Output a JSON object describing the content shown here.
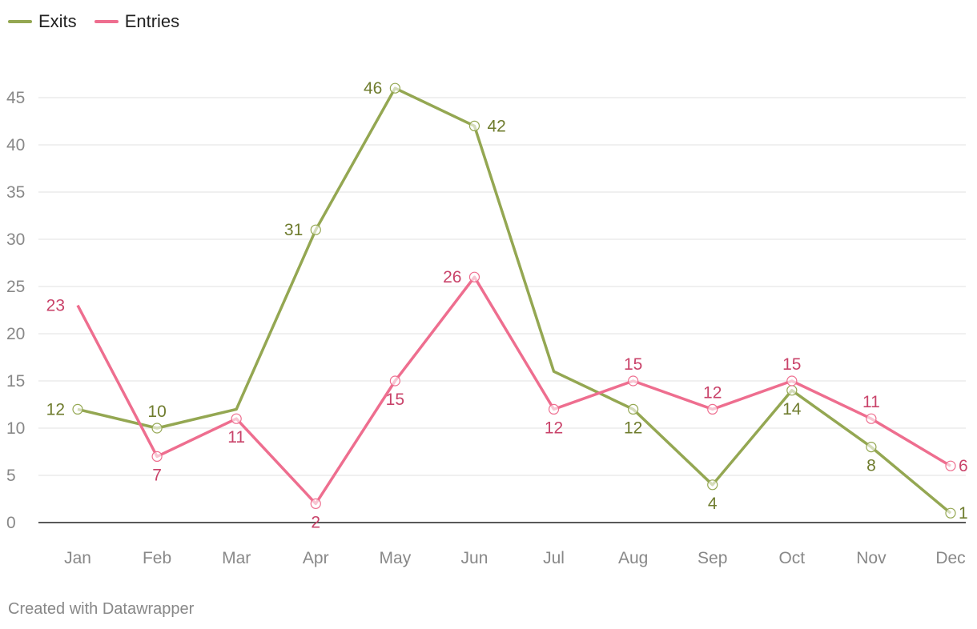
{
  "legend": [
    {
      "name": "Exits",
      "color": "#94a752"
    },
    {
      "name": "Entries",
      "color": "#ee6e8f"
    }
  ],
  "footer": "Created with Datawrapper",
  "chart_data": {
    "type": "line",
    "categories": [
      "Jan",
      "Feb",
      "Mar",
      "Apr",
      "May",
      "Jun",
      "Jul",
      "Aug",
      "Sep",
      "Oct",
      "Nov",
      "Dec"
    ],
    "ylim": [
      0,
      45
    ],
    "yticks": [
      0,
      5,
      10,
      15,
      20,
      25,
      30,
      35,
      40,
      45
    ],
    "grid": true,
    "legend_position": "top-left",
    "series": [
      {
        "name": "Exits",
        "color": "#94a752",
        "label_color": "#6f7c2e",
        "values": [
          12,
          10,
          12,
          31,
          46,
          42,
          16,
          12,
          4,
          14,
          8,
          1
        ],
        "labels": [
          "12",
          "10",
          "",
          "31",
          "46",
          "42",
          "",
          "12",
          "4",
          "14",
          "8",
          "1"
        ]
      },
      {
        "name": "Entries",
        "color": "#ee6e8f",
        "label_color": "#c9436a",
        "values": [
          23,
          7,
          11,
          2,
          15,
          26,
          12,
          15,
          12,
          15,
          11,
          6
        ],
        "labels": [
          "23",
          "7",
          "11",
          "2",
          "15",
          "26",
          "12",
          "15",
          "12",
          "15",
          "11",
          "6"
        ]
      }
    ]
  }
}
